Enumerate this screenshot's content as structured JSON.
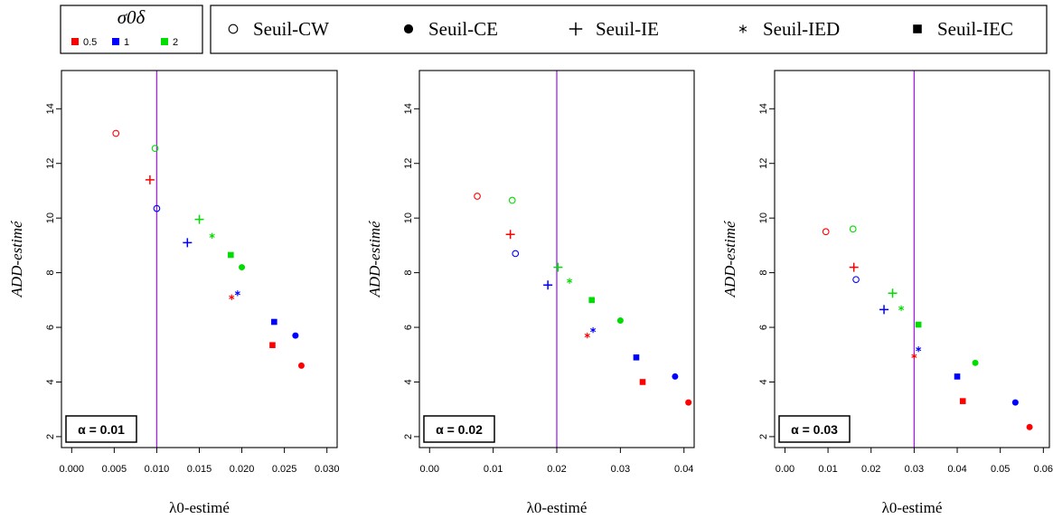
{
  "chart_data": {
    "type": "scatter",
    "colors": {
      "0.5": "#ff0000",
      "1": "#0000ff",
      "2": "#00dd00",
      "vline": "#a020f0"
    },
    "legend_color": {
      "title": "σ0δ",
      "entries": [
        "0.5",
        "1",
        "2"
      ]
    },
    "legend_shapes": [
      {
        "label": "Seuil-CW",
        "shape": "open-circle"
      },
      {
        "label": "Seuil-CE",
        "shape": "filled-circle"
      },
      {
        "label": "Seuil-IE",
        "shape": "plus"
      },
      {
        "label": "Seuil-IED",
        "shape": "star"
      },
      {
        "label": "Seuil-IEC",
        "shape": "filled-square"
      }
    ],
    "xlabel": "λ0-estimé",
    "ylabel": "ADD-estimé",
    "ylim": [
      1.6,
      15.4
    ],
    "yticks": [
      "2",
      "4",
      "6",
      "8",
      "10",
      "12",
      "14"
    ],
    "panels": [
      {
        "annotation": "α = 0.01",
        "xlim": [
          -0.0012,
          0.0312
        ],
        "xticks": [
          "0.000",
          "0.005",
          "0.010",
          "0.015",
          "0.020",
          "0.025",
          "0.030"
        ],
        "vline": 0.01,
        "points": [
          {
            "series": "Seuil-CW",
            "group": "0.5",
            "x": 0.0052,
            "y": 13.1
          },
          {
            "series": "Seuil-CW",
            "group": "2",
            "x": 0.0098,
            "y": 12.55
          },
          {
            "series": "Seuil-CW",
            "group": "1",
            "x": 0.01,
            "y": 10.35
          },
          {
            "series": "Seuil-IE",
            "group": "0.5",
            "x": 0.0092,
            "y": 11.4
          },
          {
            "series": "Seuil-IE",
            "group": "2",
            "x": 0.015,
            "y": 9.95
          },
          {
            "series": "Seuil-IE",
            "group": "1",
            "x": 0.0136,
            "y": 9.1
          },
          {
            "series": "Seuil-IED",
            "group": "2",
            "x": 0.0165,
            "y": 9.35
          },
          {
            "series": "Seuil-IED",
            "group": "0.5",
            "x": 0.0188,
            "y": 7.1
          },
          {
            "series": "Seuil-IED",
            "group": "1",
            "x": 0.0195,
            "y": 7.25
          },
          {
            "series": "Seuil-IEC",
            "group": "2",
            "x": 0.0187,
            "y": 8.65
          },
          {
            "series": "Seuil-IEC",
            "group": "1",
            "x": 0.0238,
            "y": 6.2
          },
          {
            "series": "Seuil-IEC",
            "group": "0.5",
            "x": 0.0236,
            "y": 5.35
          },
          {
            "series": "Seuil-CE",
            "group": "2",
            "x": 0.02,
            "y": 8.2
          },
          {
            "series": "Seuil-CE",
            "group": "1",
            "x": 0.0263,
            "y": 5.7
          },
          {
            "series": "Seuil-CE",
            "group": "0.5",
            "x": 0.027,
            "y": 4.6
          }
        ]
      },
      {
        "annotation": "α = 0.02",
        "xlim": [
          -0.0016,
          0.0416
        ],
        "xticks": [
          "0.00",
          "0.01",
          "0.02",
          "0.03",
          "0.04"
        ],
        "vline": 0.02,
        "points": [
          {
            "series": "Seuil-CW",
            "group": "0.5",
            "x": 0.0075,
            "y": 10.8
          },
          {
            "series": "Seuil-CW",
            "group": "2",
            "x": 0.013,
            "y": 10.65
          },
          {
            "series": "Seuil-CW",
            "group": "1",
            "x": 0.0135,
            "y": 8.7
          },
          {
            "series": "Seuil-IE",
            "group": "0.5",
            "x": 0.0127,
            "y": 9.4
          },
          {
            "series": "Seuil-IE",
            "group": "2",
            "x": 0.0202,
            "y": 8.2
          },
          {
            "series": "Seuil-IE",
            "group": "1",
            "x": 0.0186,
            "y": 7.55
          },
          {
            "series": "Seuil-IED",
            "group": "2",
            "x": 0.022,
            "y": 7.7
          },
          {
            "series": "Seuil-IED",
            "group": "0.5",
            "x": 0.0248,
            "y": 5.7
          },
          {
            "series": "Seuil-IED",
            "group": "1",
            "x": 0.0257,
            "y": 5.9
          },
          {
            "series": "Seuil-IEC",
            "group": "2",
            "x": 0.0255,
            "y": 7.0
          },
          {
            "series": "Seuil-IEC",
            "group": "1",
            "x": 0.0325,
            "y": 4.9
          },
          {
            "series": "Seuil-IEC",
            "group": "0.5",
            "x": 0.0335,
            "y": 4.0
          },
          {
            "series": "Seuil-CE",
            "group": "2",
            "x": 0.03,
            "y": 6.25
          },
          {
            "series": "Seuil-CE",
            "group": "1",
            "x": 0.0386,
            "y": 4.2
          },
          {
            "series": "Seuil-CE",
            "group": "0.5",
            "x": 0.0407,
            "y": 3.25
          }
        ]
      },
      {
        "annotation": "α = 0.03",
        "xlim": [
          -0.0024,
          0.0614
        ],
        "xticks": [
          "0.00",
          "0.01",
          "0.02",
          "0.03",
          "0.04",
          "0.05",
          "0.06"
        ],
        "vline": 0.03,
        "points": [
          {
            "series": "Seuil-CW",
            "group": "0.5",
            "x": 0.0095,
            "y": 9.5
          },
          {
            "series": "Seuil-CW",
            "group": "2",
            "x": 0.0158,
            "y": 9.6
          },
          {
            "series": "Seuil-CW",
            "group": "1",
            "x": 0.0165,
            "y": 7.75
          },
          {
            "series": "Seuil-IE",
            "group": "0.5",
            "x": 0.016,
            "y": 8.2
          },
          {
            "series": "Seuil-IE",
            "group": "2",
            "x": 0.025,
            "y": 7.25
          },
          {
            "series": "Seuil-IE",
            "group": "1",
            "x": 0.023,
            "y": 6.65
          },
          {
            "series": "Seuil-IED",
            "group": "2",
            "x": 0.027,
            "y": 6.7
          },
          {
            "series": "Seuil-IED",
            "group": "0.5",
            "x": 0.03,
            "y": 4.95
          },
          {
            "series": "Seuil-IED",
            "group": "1",
            "x": 0.031,
            "y": 5.2
          },
          {
            "series": "Seuil-IEC",
            "group": "2",
            "x": 0.031,
            "y": 6.1
          },
          {
            "series": "Seuil-IEC",
            "group": "1",
            "x": 0.04,
            "y": 4.2
          },
          {
            "series": "Seuil-IEC",
            "group": "0.5",
            "x": 0.0413,
            "y": 3.3
          },
          {
            "series": "Seuil-CE",
            "group": "2",
            "x": 0.0442,
            "y": 4.7
          },
          {
            "series": "Seuil-CE",
            "group": "1",
            "x": 0.0535,
            "y": 3.25
          },
          {
            "series": "Seuil-CE",
            "group": "0.5",
            "x": 0.0568,
            "y": 2.35
          }
        ]
      }
    ]
  }
}
